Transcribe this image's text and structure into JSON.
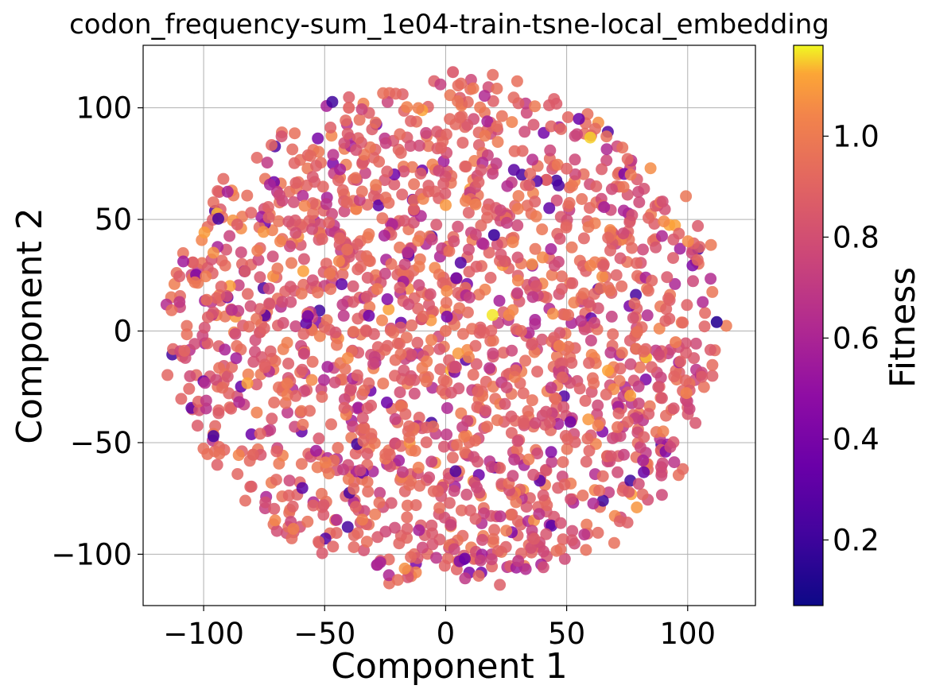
{
  "chart_data": {
    "type": "scatter",
    "title": "codon_frequency-sum_1e04-train-tsne-local_embedding",
    "xlabel": "Component 1",
    "ylabel": "Component 2",
    "xlim": [
      -125,
      128
    ],
    "ylim": [
      -123,
      128
    ],
    "xticks": [
      -100,
      -50,
      0,
      50,
      100
    ],
    "xtick_labels": [
      "−100",
      "−50",
      "0",
      "50",
      "100"
    ],
    "yticks": [
      -100,
      -50,
      0,
      50,
      100
    ],
    "ytick_labels": [
      "−100",
      "−50",
      "0",
      "50",
      "100"
    ],
    "grid": true,
    "colormap": "plasma",
    "colorbar": {
      "label": "Fitness",
      "range": [
        0.07,
        1.18
      ],
      "ticks": [
        0.2,
        0.4,
        0.6,
        0.8,
        1.0
      ],
      "tick_labels": [
        "0.2",
        "0.4",
        "0.6",
        "0.8",
        "1.0"
      ]
    },
    "point_count_estimate": 1800,
    "distribution": "roughly circular cloud centered near (0, 0), radius about 115 in data units; fitness mostly 0.8-1.0 with scattered low-fitness (purple) points",
    "sample_points": [
      {
        "x": 0,
        "y": 0,
        "fitness": 0.95
      },
      {
        "x": -40,
        "y": 100,
        "fitness": 0.9
      },
      {
        "x": 95,
        "y": -5,
        "fitness": 1.0
      },
      {
        "x": -110,
        "y": 13,
        "fitness": 0.7
      },
      {
        "x": 112,
        "y": 4,
        "fitness": 0.15
      },
      {
        "x": 20,
        "y": 43,
        "fitness": 0.2
      },
      {
        "x": 30,
        "y": -103,
        "fitness": 0.7
      },
      {
        "x": 3,
        "y": 116,
        "fitness": 0.85
      }
    ]
  }
}
